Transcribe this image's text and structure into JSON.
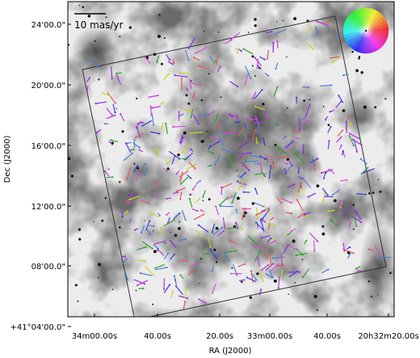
{
  "chart_data": {
    "type": "scatter",
    "title": "",
    "xlabel": "RA (J2000)",
    "ylabel": "Dec (J2000)",
    "x_ticks": [
      "34m00.00s",
      "40.00s",
      "20.00s",
      "33m00.00s",
      "40.00s",
      "20h32m20.00s"
    ],
    "y_ticks": [
      "+41°04'00.0\"",
      "08'00.0\"",
      "12'00.0\"",
      "16'00.0\"",
      "20'00.0\"",
      "24'00.0\""
    ],
    "scale_bar_label": "10 mas/yr",
    "background": "grayscale-infrared-nebula",
    "footprint": "rotated-square",
    "colorwheel": "direction-legend-top-right",
    "vector_colors": [
      "#3b3bd9",
      "#b23ad6",
      "#d64cd6",
      "#2ca02c",
      "#c9d42a",
      "#e05a5a",
      "#4a7fd8",
      "#8a2be2"
    ],
    "grid": false
  }
}
